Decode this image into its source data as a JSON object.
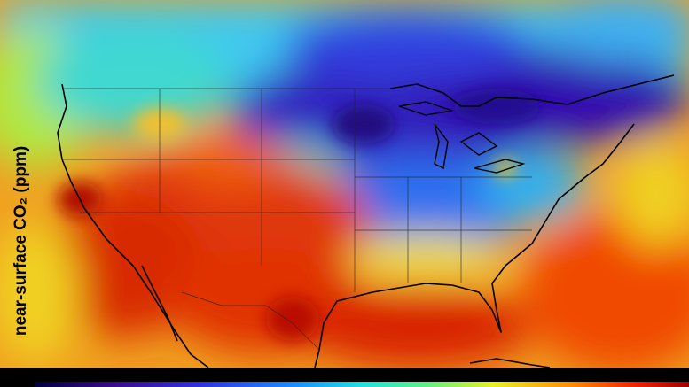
{
  "map": {
    "colorbar_label": "near-surface CO₂ (ppm)"
  }
}
